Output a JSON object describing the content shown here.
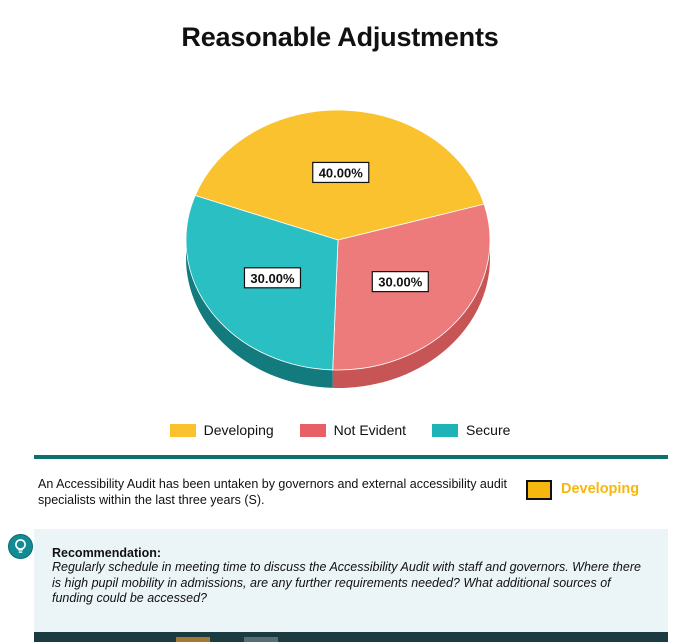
{
  "chart_data": {
    "type": "pie",
    "title": "Reasonable Adjustments",
    "series": [
      {
        "name": "Developing",
        "value": 40,
        "label": "40.00%",
        "color": "#f9c22e",
        "side_color": "#d19a0f"
      },
      {
        "name": "Not Evident",
        "value": 30,
        "label": "30.00%",
        "color": "#ee7b7b",
        "side_color": "#c75555"
      },
      {
        "name": "Secure",
        "value": 30,
        "label": "30.00%",
        "color": "#2abfc3",
        "side_color": "#137a7d"
      }
    ],
    "legend_position": "bottom"
  },
  "legend_colors": {
    "developing": "#f9c22e",
    "not_evident": "#e95f66",
    "secure": "#1eb3b6"
  },
  "audit": {
    "statement": "An Accessibility Audit has been untaken by governors and external accessibility audit specialists within the last three years (S).",
    "status": "Developing",
    "status_color": "#f6b80f"
  },
  "recommendation": {
    "icon": "lightbulb-icon",
    "title": "Recommendation:",
    "body": "Regularly schedule in meeting time to discuss the Accessibility Audit with staff and governors. Where there is high pupil mobility in admissions, are any further requirements needed?  What additional sources of funding could be accessed?"
  }
}
